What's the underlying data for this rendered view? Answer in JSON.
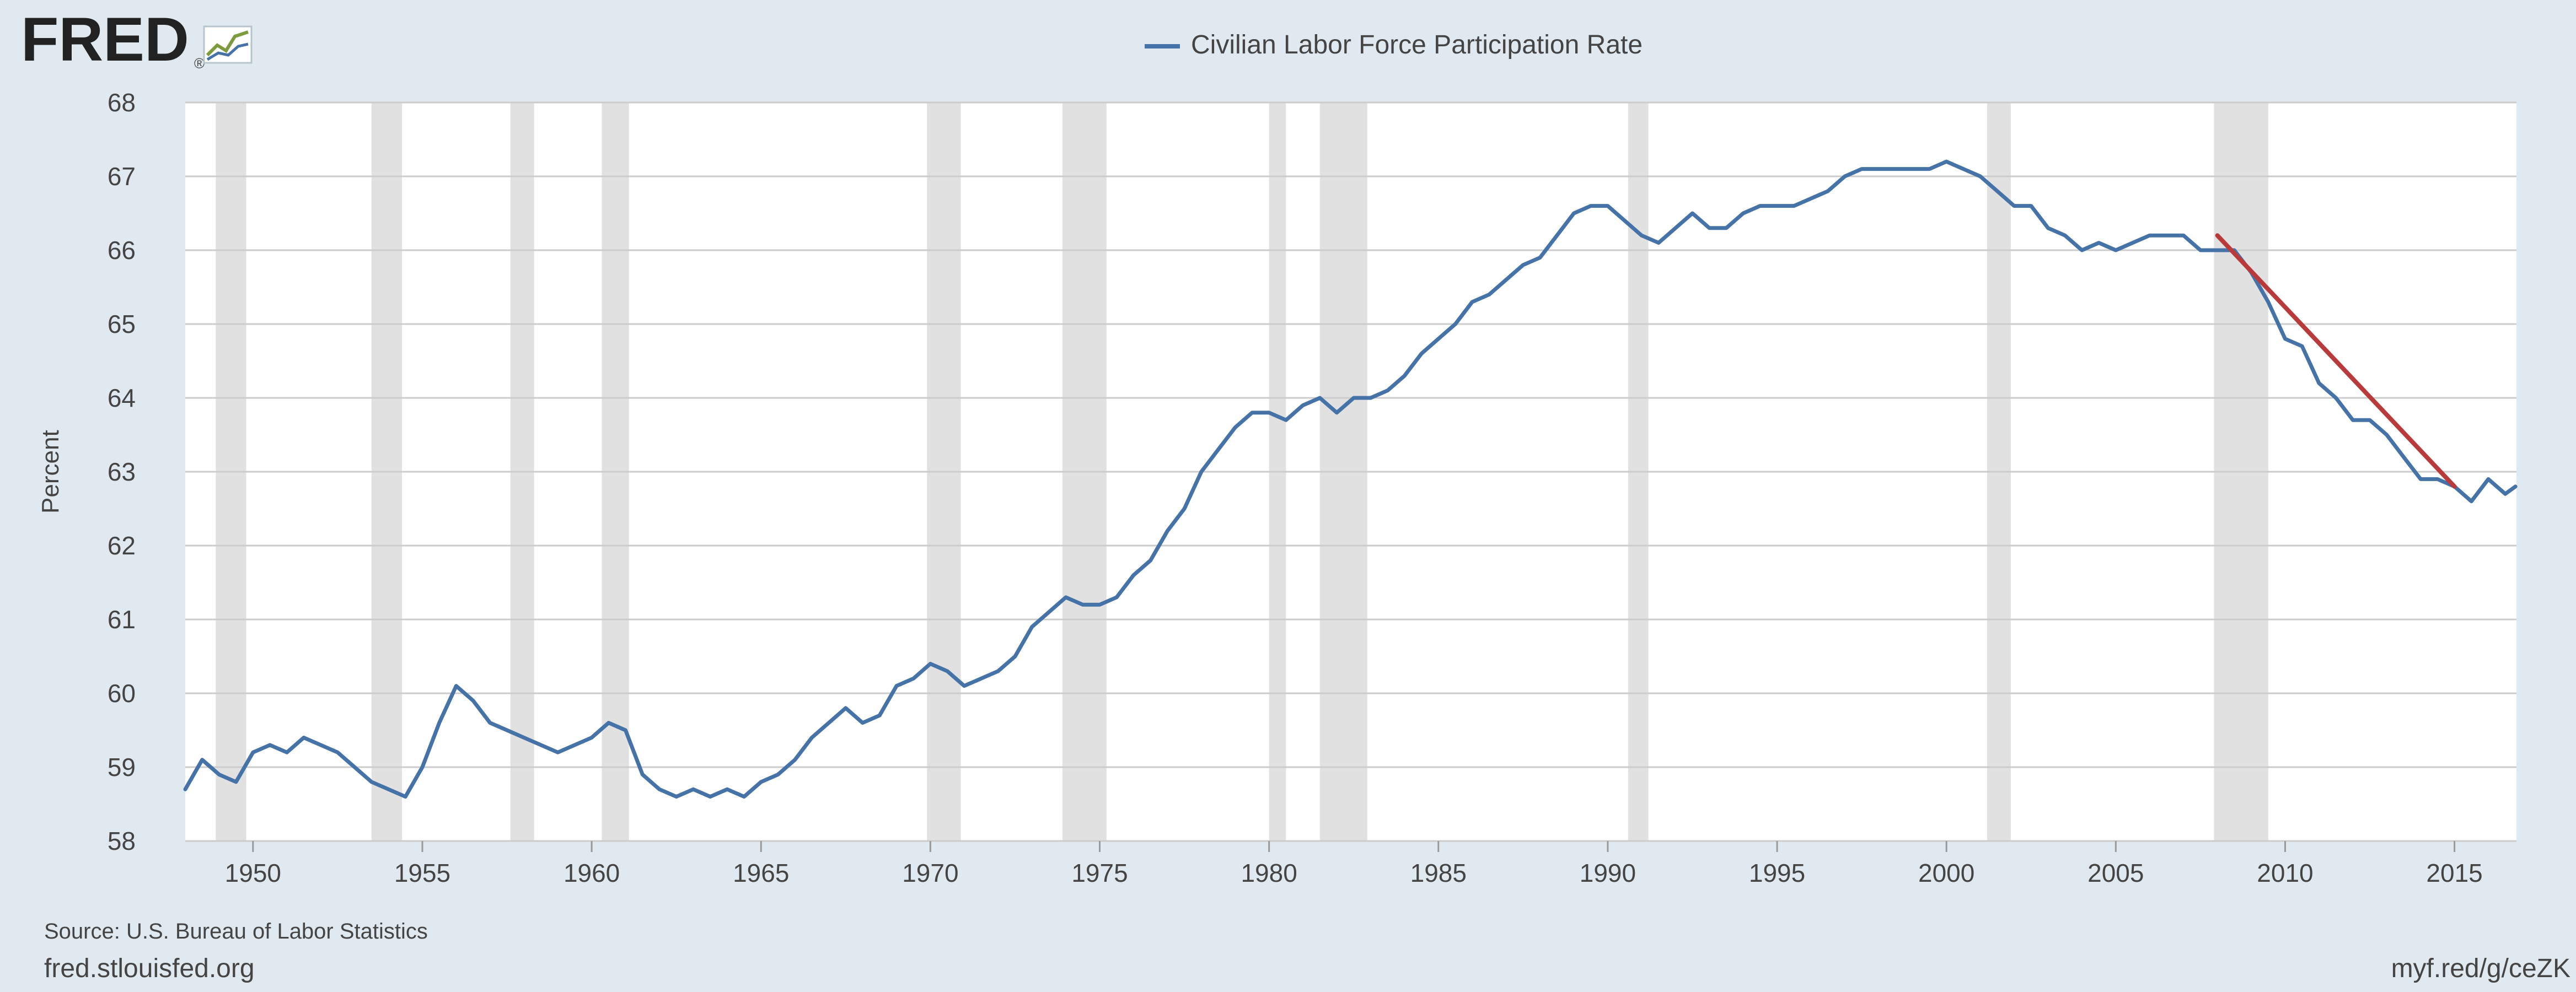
{
  "logo": {
    "text": "FRED",
    "mark": "®",
    "icon": "chart-line-icon"
  },
  "footer": {
    "source": "Source: U.S. Bureau of Labor Statistics",
    "site": "fred.stlouisfed.org",
    "short_url": "myf.red/g/ceZK"
  },
  "colors": {
    "background": "#e1e9f0",
    "plot_background": "#ffffff",
    "series": "#4572a7",
    "trend": "#b83a3a",
    "recession": "#e1e1e1",
    "grid": "#cccccc",
    "text": "#444444"
  },
  "chart_data": {
    "type": "line",
    "title": "",
    "xlabel": "",
    "ylabel": "Percent",
    "legend": {
      "position": "top-center",
      "entries": [
        "Civilian Labor Force Participation Rate"
      ]
    },
    "grid": true,
    "xlim": [
      1948.0,
      2016.83
    ],
    "ylim": [
      58,
      68
    ],
    "x_ticks": [
      1950,
      1955,
      1960,
      1965,
      1970,
      1975,
      1980,
      1985,
      1990,
      1995,
      2000,
      2005,
      2010,
      2015
    ],
    "y_ticks": [
      58,
      59,
      60,
      61,
      62,
      63,
      64,
      65,
      66,
      67,
      68
    ],
    "recessions": [
      [
        1948.9,
        1949.8
      ],
      [
        1953.5,
        1954.4
      ],
      [
        1957.6,
        1958.3
      ],
      [
        1960.3,
        1961.1
      ],
      [
        1969.9,
        1970.9
      ],
      [
        1973.9,
        1975.2
      ],
      [
        1980.0,
        1980.5
      ],
      [
        1981.5,
        1982.9
      ],
      [
        1990.6,
        1991.2
      ],
      [
        2001.2,
        2001.9
      ],
      [
        2007.9,
        2009.5
      ]
    ],
    "series": [
      {
        "name": "Civilian Labor Force Participation Rate",
        "x": [
          1948.0,
          1948.5,
          1949.0,
          1949.5,
          1950.0,
          1950.5,
          1951.0,
          1951.5,
          1952.0,
          1952.5,
          1953.0,
          1953.5,
          1954.0,
          1954.5,
          1955.0,
          1955.5,
          1956.0,
          1956.5,
          1957.0,
          1957.5,
          1958.0,
          1958.5,
          1959.0,
          1959.5,
          1960.0,
          1960.5,
          1961.0,
          1961.5,
          1962.0,
          1962.5,
          1963.0,
          1963.5,
          1964.0,
          1964.5,
          1965.0,
          1965.5,
          1966.0,
          1966.5,
          1967.0,
          1967.5,
          1968.0,
          1968.5,
          1969.0,
          1969.5,
          1970.0,
          1970.5,
          1971.0,
          1971.5,
          1972.0,
          1972.5,
          1973.0,
          1973.5,
          1974.0,
          1974.5,
          1975.0,
          1975.5,
          1976.0,
          1976.5,
          1977.0,
          1977.5,
          1978.0,
          1978.5,
          1979.0,
          1979.5,
          1980.0,
          1980.5,
          1981.0,
          1981.5,
          1982.0,
          1982.5,
          1983.0,
          1983.5,
          1984.0,
          1984.5,
          1985.0,
          1985.5,
          1986.0,
          1986.5,
          1987.0,
          1987.5,
          1988.0,
          1988.5,
          1989.0,
          1989.5,
          1990.0,
          1990.5,
          1991.0,
          1991.5,
          1992.0,
          1992.5,
          1993.0,
          1993.5,
          1994.0,
          1994.5,
          1995.0,
          1995.5,
          1996.0,
          1996.5,
          1997.0,
          1997.5,
          1998.0,
          1998.5,
          1999.0,
          1999.5,
          2000.0,
          2000.5,
          2001.0,
          2001.5,
          2002.0,
          2002.5,
          2003.0,
          2003.5,
          2004.0,
          2004.5,
          2005.0,
          2005.5,
          2006.0,
          2006.5,
          2007.0,
          2007.5,
          2008.0,
          2008.5,
          2009.0,
          2009.5,
          2010.0,
          2010.5,
          2011.0,
          2011.5,
          2012.0,
          2012.5,
          2013.0,
          2013.5,
          2014.0,
          2014.5,
          2015.0,
          2015.5,
          2016.0,
          2016.5,
          2016.8
        ],
        "y": [
          58.7,
          59.1,
          58.9,
          58.8,
          59.2,
          59.3,
          59.2,
          59.4,
          59.3,
          59.2,
          59.0,
          58.8,
          58.7,
          58.6,
          59.0,
          59.6,
          60.1,
          59.9,
          59.6,
          59.5,
          59.4,
          59.3,
          59.2,
          59.3,
          59.4,
          59.6,
          59.5,
          58.9,
          58.7,
          58.6,
          58.7,
          58.6,
          58.7,
          58.6,
          58.8,
          58.9,
          59.1,
          59.4,
          59.6,
          59.8,
          59.6,
          59.7,
          60.1,
          60.2,
          60.4,
          60.3,
          60.1,
          60.2,
          60.3,
          60.5,
          60.9,
          61.1,
          61.3,
          61.2,
          61.2,
          61.3,
          61.6,
          61.8,
          62.2,
          62.5,
          63.0,
          63.3,
          63.6,
          63.8,
          63.8,
          63.7,
          63.9,
          64.0,
          63.8,
          64.0,
          64.0,
          64.1,
          64.3,
          64.6,
          64.8,
          65.0,
          65.3,
          65.4,
          65.6,
          65.8,
          65.9,
          66.2,
          66.5,
          66.6,
          66.6,
          66.4,
          66.2,
          66.1,
          66.3,
          66.5,
          66.3,
          66.3,
          66.5,
          66.6,
          66.6,
          66.6,
          66.7,
          66.8,
          67.0,
          67.1,
          67.1,
          67.1,
          67.1,
          67.1,
          67.2,
          67.1,
          67.0,
          66.8,
          66.6,
          66.6,
          66.3,
          66.2,
          66.0,
          66.1,
          66.0,
          66.1,
          66.2,
          66.2,
          66.2,
          66.0,
          66.0,
          66.0,
          65.7,
          65.3,
          64.8,
          64.7,
          64.2,
          64.0,
          63.7,
          63.7,
          63.5,
          63.2,
          62.9,
          62.9,
          62.8,
          62.6,
          62.9,
          62.7,
          62.8
        ]
      },
      {
        "name": "trend",
        "x": [
          2008.0,
          2015.0
        ],
        "y": [
          66.2,
          62.8
        ]
      }
    ]
  }
}
